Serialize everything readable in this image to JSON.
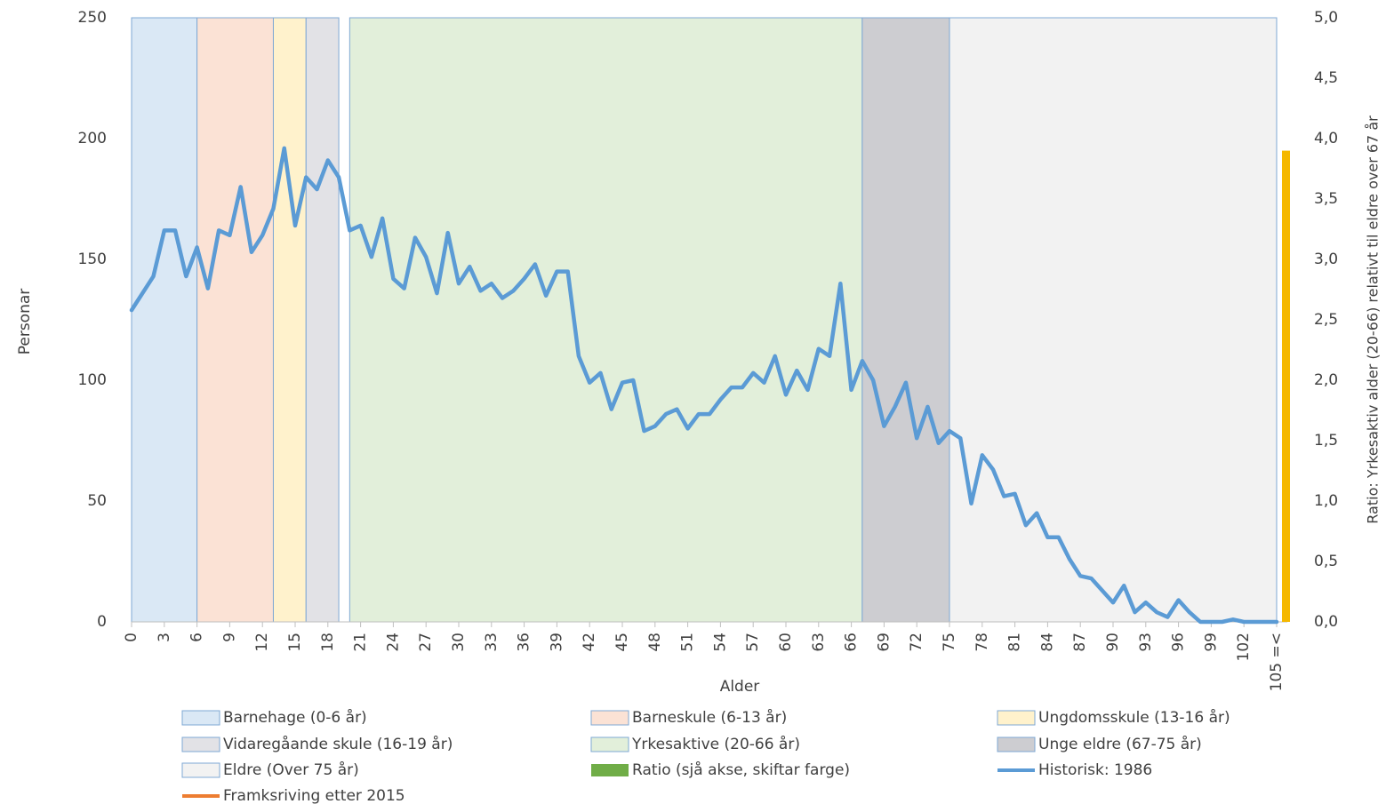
{
  "chart_data": {
    "type": "line",
    "x_label": "Alder",
    "y_label": "Personar",
    "y2_label": "Ratio: Yrkesaktiv alder  (20-66) relativt til eldre over 67 år",
    "categories": [
      "0",
      null,
      null,
      "3",
      null,
      null,
      "6",
      null,
      null,
      "9",
      null,
      null,
      "12",
      null,
      null,
      "15",
      null,
      null,
      "18",
      null,
      null,
      "21",
      null,
      null,
      "24",
      null,
      null,
      "27",
      null,
      null,
      "30",
      null,
      null,
      "33",
      null,
      null,
      "36",
      null,
      null,
      "39",
      null,
      null,
      "42",
      null,
      null,
      "45",
      null,
      null,
      "48",
      null,
      null,
      "51",
      null,
      null,
      "54",
      null,
      null,
      "57",
      null,
      null,
      "60",
      null,
      null,
      "63",
      null,
      null,
      "66",
      null,
      null,
      "69",
      null,
      null,
      "72",
      null,
      null,
      "75",
      null,
      null,
      "78",
      null,
      null,
      "81",
      null,
      null,
      "84",
      null,
      null,
      "87",
      null,
      null,
      "90",
      null,
      null,
      "93",
      null,
      null,
      "96",
      null,
      null,
      "99",
      null,
      null,
      "102",
      null,
      null,
      "105 =<"
    ],
    "ylim": [
      0,
      250
    ],
    "yticks": [
      0,
      50,
      100,
      150,
      200,
      250
    ],
    "y2lim": [
      0,
      5
    ],
    "y2ticks": [
      {
        "value": 0,
        "label": "0,0"
      },
      {
        "value": 0.5,
        "label": "0,5"
      },
      {
        "value": 1,
        "label": "1,0"
      },
      {
        "value": 1.5,
        "label": "1,5"
      },
      {
        "value": 2,
        "label": "2,0"
      },
      {
        "value": 2.5,
        "label": "2,5"
      },
      {
        "value": 3,
        "label": "3,0"
      },
      {
        "value": 3.5,
        "label": "3,5"
      },
      {
        "value": 4,
        "label": "4,0"
      },
      {
        "value": 4.5,
        "label": "4,5"
      },
      {
        "value": 5,
        "label": "5,0"
      }
    ],
    "bands": [
      {
        "name": "Barnehage (0-6 år)",
        "color": "#dae8f5",
        "from": 0,
        "to": 6
      },
      {
        "name": "Barneskule (6-13 år)",
        "color": "#fbe2d5",
        "from": 6,
        "to": 13
      },
      {
        "name": "Ungdomsskule (13-16 år)",
        "color": "#fff2cc",
        "from": 13,
        "to": 16
      },
      {
        "name": "Vidaregåande skule (16-19 år)",
        "color": "#e2e2e6",
        "from": 16,
        "to": 19
      },
      {
        "name": "Yrkesaktive (20-66 år)",
        "color": "#e2efda",
        "from": 20,
        "to": 67
      },
      {
        "name": "Unge eldre (67-75 år)",
        "color": "#cdcdd1",
        "from": 67,
        "to": 75
      },
      {
        "name": "Eldre (Over 75 år)",
        "color": "#f2f2f2",
        "from": 75,
        "to": 105
      }
    ],
    "ratio": {
      "name": "Ratio (sjå akse, skiftar farge)",
      "legend_color": "#70ad47",
      "color": "#f5b800",
      "value": 3.9,
      "axis": "y2"
    },
    "series": [
      {
        "name": "Historisk: 1986",
        "color": "#5b9bd5",
        "values": [
          129,
          136,
          143,
          162,
          162,
          143,
          155,
          138,
          162,
          160,
          180,
          153,
          160,
          171,
          196,
          164,
          184,
          179,
          191,
          184,
          162,
          164,
          151,
          167,
          142,
          138,
          159,
          151,
          136,
          161,
          140,
          147,
          137,
          140,
          134,
          137,
          142,
          148,
          135,
          145,
          145,
          110,
          99,
          103,
          88,
          99,
          100,
          79,
          81,
          86,
          88,
          80,
          86,
          86,
          92,
          97,
          97,
          103,
          99,
          110,
          94,
          104,
          96,
          113,
          110,
          140,
          96,
          108,
          100,
          81,
          89,
          99,
          76,
          89,
          74,
          79,
          76,
          49,
          69,
          63,
          52,
          53,
          40,
          45,
          35,
          35,
          26,
          19,
          18,
          13,
          8,
          15,
          4,
          8,
          4,
          2,
          9,
          4,
          0,
          0,
          0,
          1,
          0,
          0,
          0,
          0
        ]
      },
      {
        "name": "Framksriving etter 2015",
        "color": "#ed7d31"
      }
    ]
  }
}
